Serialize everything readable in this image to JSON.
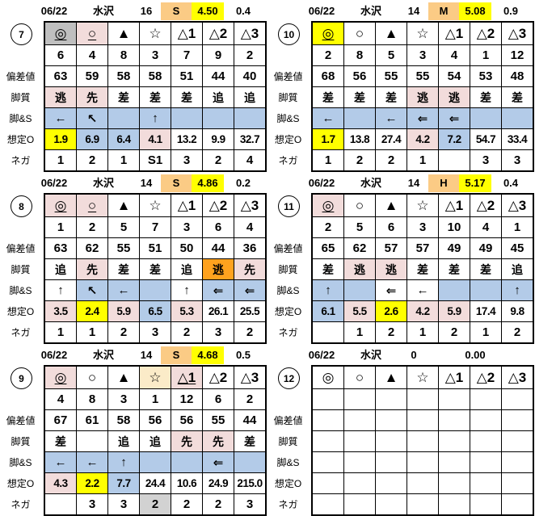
{
  "colors": {
    "yellow": "#FFFF00",
    "tan": "#FBCB85",
    "pink": "#F2DCDB",
    "blue": "#B3CBE8",
    "gray": "#BFBFBF",
    "lightgray": "#D2D2D2",
    "cream": "#FBEBC8",
    "orange": "#FFA21E"
  },
  "row_labels": {
    "dev": "偏差値",
    "style": "脚質",
    "legs": "脚&S",
    "odds": "想定O",
    "neg": "ネガ"
  },
  "blocks": [
    {
      "id": "7",
      "header": {
        "date": "06/22",
        "track": "水沢",
        "num": "16",
        "letter": "S",
        "letter_bg": "tan",
        "value": "4.50",
        "value_bg": "yellow",
        "extra": "0.4"
      },
      "symbols": [
        {
          "t": "◎",
          "bg": "gray",
          "u": true
        },
        {
          "t": "○",
          "bg": "pink",
          "u": true
        },
        {
          "t": "▲"
        },
        {
          "t": "☆"
        },
        {
          "t": "△1"
        },
        {
          "t": "△2"
        },
        {
          "t": "△3"
        }
      ],
      "numbers": [
        "6",
        "4",
        "8",
        "3",
        "7",
        "9",
        "2"
      ],
      "dev": [
        "63",
        "59",
        "58",
        "58",
        "51",
        "44",
        "40"
      ],
      "style": [
        {
          "t": "逃",
          "bg": "pink"
        },
        {
          "t": "先",
          "bg": "pink"
        },
        {
          "t": "差"
        },
        {
          "t": "差"
        },
        {
          "t": "差"
        },
        {
          "t": "追"
        },
        {
          "t": "追"
        }
      ],
      "legs": [
        {
          "t": "←",
          "bg": "blue"
        },
        {
          "t": "↖",
          "bg": "blue"
        },
        {
          "t": "",
          "bg": "blue"
        },
        {
          "t": "↑",
          "bg": "blue"
        },
        {
          "t": "",
          "bg": "blue"
        },
        {
          "t": "",
          "bg": "blue"
        },
        {
          "t": "",
          "bg": "blue"
        }
      ],
      "odds": [
        {
          "t": "1.9",
          "bg": "yellow"
        },
        {
          "t": "6.9",
          "bg": "blue"
        },
        {
          "t": "6.4",
          "bg": "blue"
        },
        {
          "t": "4.1",
          "bg": "pink"
        },
        {
          "t": "13.2"
        },
        {
          "t": "9.9"
        },
        {
          "t": "32.7"
        }
      ],
      "neg": [
        {
          "t": "1"
        },
        {
          "t": "2"
        },
        {
          "t": "1"
        },
        {
          "t": "S1"
        },
        {
          "t": "3"
        },
        {
          "t": "2"
        },
        {
          "t": "4"
        }
      ]
    },
    {
      "id": "8",
      "header": {
        "date": "06/22",
        "track": "水沢",
        "num": "14",
        "letter": "S",
        "letter_bg": "tan",
        "value": "4.86",
        "value_bg": "yellow",
        "extra": "0.2"
      },
      "symbols": [
        {
          "t": "◎",
          "bg": "pink",
          "u": true
        },
        {
          "t": "○",
          "bg": "pink",
          "u": true
        },
        {
          "t": "▲"
        },
        {
          "t": "☆"
        },
        {
          "t": "△1"
        },
        {
          "t": "△2"
        },
        {
          "t": "△3"
        }
      ],
      "numbers": [
        "1",
        "2",
        "5",
        "7",
        "3",
        "6",
        "4"
      ],
      "dev": [
        "63",
        "62",
        "55",
        "51",
        "50",
        "44",
        "36"
      ],
      "style": [
        {
          "t": "追"
        },
        {
          "t": "先",
          "bg": "pink"
        },
        {
          "t": "差"
        },
        {
          "t": "差"
        },
        {
          "t": "追"
        },
        {
          "t": "逃",
          "bg": "orange"
        },
        {
          "t": "先",
          "bg": "pink"
        }
      ],
      "legs": [
        {
          "t": "↑"
        },
        {
          "t": "↖",
          "bg": "blue"
        },
        {
          "t": "←",
          "bg": "blue"
        },
        {
          "t": "",
          "bg": "blue"
        },
        {
          "t": "↑"
        },
        {
          "t": "⇐",
          "bg": "blue"
        },
        {
          "t": "⇐",
          "bg": "blue"
        }
      ],
      "odds": [
        {
          "t": "3.5",
          "bg": "pink"
        },
        {
          "t": "2.4",
          "bg": "yellow"
        },
        {
          "t": "5.9",
          "bg": "pink"
        },
        {
          "t": "6.5",
          "bg": "blue"
        },
        {
          "t": "5.3",
          "bg": "pink"
        },
        {
          "t": "26.1"
        },
        {
          "t": "25.5"
        }
      ],
      "neg": [
        {
          "t": "1"
        },
        {
          "t": "1"
        },
        {
          "t": "2"
        },
        {
          "t": "3"
        },
        {
          "t": "2"
        },
        {
          "t": "3"
        },
        {
          "t": "2"
        }
      ]
    },
    {
      "id": "9",
      "header": {
        "date": "06/22",
        "track": "水沢",
        "num": "14",
        "letter": "S",
        "letter_bg": "tan",
        "value": "4.68",
        "value_bg": "yellow",
        "extra": "0.5"
      },
      "symbols": [
        {
          "t": "◎",
          "bg": "pink",
          "u": true
        },
        {
          "t": "○"
        },
        {
          "t": "▲"
        },
        {
          "t": "☆",
          "bg": "cream"
        },
        {
          "t": "△1",
          "bg": "pink",
          "u": true
        },
        {
          "t": "△2"
        },
        {
          "t": "△3"
        }
      ],
      "numbers": [
        "4",
        "8",
        "3",
        "1",
        "12",
        "6",
        "2"
      ],
      "dev": [
        "67",
        "61",
        "58",
        "56",
        "56",
        "55",
        "44"
      ],
      "style": [
        {
          "t": "差"
        },
        {
          "t": ""
        },
        {
          "t": "追"
        },
        {
          "t": "追"
        },
        {
          "t": "先",
          "bg": "pink"
        },
        {
          "t": "先",
          "bg": "pink"
        },
        {
          "t": "差"
        }
      ],
      "legs": [
        {
          "t": "←",
          "bg": "blue"
        },
        {
          "t": "←",
          "bg": "blue"
        },
        {
          "t": "↑",
          "bg": "blue"
        },
        {
          "t": "",
          "bg": "blue"
        },
        {
          "t": "",
          "bg": "blue"
        },
        {
          "t": "⇐",
          "bg": "blue"
        },
        {
          "t": "",
          "bg": "blue"
        }
      ],
      "odds": [
        {
          "t": "4.3",
          "bg": "pink"
        },
        {
          "t": "2.2",
          "bg": "yellow"
        },
        {
          "t": "7.7",
          "bg": "blue"
        },
        {
          "t": "24.4"
        },
        {
          "t": "10.6"
        },
        {
          "t": "24.9"
        },
        {
          "t": "215.0"
        }
      ],
      "neg": [
        {
          "t": ""
        },
        {
          "t": "3"
        },
        {
          "t": "3"
        },
        {
          "t": "2",
          "bg": "lightgray"
        },
        {
          "t": "2"
        },
        {
          "t": "2"
        },
        {
          "t": "3"
        }
      ]
    },
    {
      "id": "10",
      "header": {
        "date": "06/22",
        "track": "水沢",
        "num": "14",
        "letter": "M",
        "letter_bg": "tan",
        "value": "5.08",
        "value_bg": "yellow",
        "extra": "0.9"
      },
      "symbols": [
        {
          "t": "◎",
          "bg": "yellow",
          "u": true
        },
        {
          "t": "○"
        },
        {
          "t": "▲"
        },
        {
          "t": "☆"
        },
        {
          "t": "△1"
        },
        {
          "t": "△2"
        },
        {
          "t": "△3"
        }
      ],
      "numbers": [
        "2",
        "8",
        "5",
        "3",
        "4",
        "1",
        "12"
      ],
      "dev": [
        "68",
        "56",
        "55",
        "55",
        "54",
        "53",
        "48"
      ],
      "style": [
        {
          "t": "差"
        },
        {
          "t": "差"
        },
        {
          "t": "差"
        },
        {
          "t": "逃",
          "bg": "pink"
        },
        {
          "t": "逃",
          "bg": "pink"
        },
        {
          "t": "差"
        },
        {
          "t": "差"
        }
      ],
      "legs": [
        {
          "t": "←",
          "bg": "blue"
        },
        {
          "t": "",
          "bg": "blue"
        },
        {
          "t": "←",
          "bg": "blue"
        },
        {
          "t": "⇐",
          "bg": "blue"
        },
        {
          "t": "⇐",
          "bg": "blue"
        },
        {
          "t": "",
          "bg": "blue"
        },
        {
          "t": "",
          "bg": "blue"
        }
      ],
      "odds": [
        {
          "t": "1.7",
          "bg": "yellow"
        },
        {
          "t": "13.8"
        },
        {
          "t": "27.4"
        },
        {
          "t": "4.2",
          "bg": "pink"
        },
        {
          "t": "7.2",
          "bg": "blue"
        },
        {
          "t": "54.7"
        },
        {
          "t": "33.4"
        }
      ],
      "neg": [
        {
          "t": "1"
        },
        {
          "t": "2"
        },
        {
          "t": "2"
        },
        {
          "t": "1"
        },
        {
          "t": ""
        },
        {
          "t": "3"
        },
        {
          "t": "3"
        }
      ]
    },
    {
      "id": "11",
      "header": {
        "date": "06/22",
        "track": "水沢",
        "num": "14",
        "letter": "H",
        "letter_bg": "tan",
        "value": "5.17",
        "value_bg": "yellow",
        "extra": "0.4"
      },
      "symbols": [
        {
          "t": "◎",
          "bg": "pink",
          "u": true
        },
        {
          "t": "○"
        },
        {
          "t": "▲"
        },
        {
          "t": "☆"
        },
        {
          "t": "△1"
        },
        {
          "t": "△2"
        },
        {
          "t": "△3"
        }
      ],
      "numbers": [
        "2",
        "5",
        "6",
        "3",
        "10",
        "4",
        "1"
      ],
      "dev": [
        "65",
        "62",
        "57",
        "57",
        "49",
        "49",
        "45"
      ],
      "style": [
        {
          "t": "差"
        },
        {
          "t": "逃",
          "bg": "pink"
        },
        {
          "t": "逃",
          "bg": "pink"
        },
        {
          "t": "差"
        },
        {
          "t": "差"
        },
        {
          "t": "差"
        },
        {
          "t": "追"
        }
      ],
      "legs": [
        {
          "t": "↑",
          "bg": "blue"
        },
        {
          "t": "",
          "bg": "blue"
        },
        {
          "t": "⇐"
        },
        {
          "t": "←"
        },
        {
          "t": "",
          "bg": "blue"
        },
        {
          "t": "",
          "bg": "blue"
        },
        {
          "t": "↑",
          "bg": "blue"
        }
      ],
      "odds": [
        {
          "t": "6.1",
          "bg": "blue"
        },
        {
          "t": "5.5",
          "bg": "pink"
        },
        {
          "t": "2.6",
          "bg": "yellow"
        },
        {
          "t": "4.2",
          "bg": "pink"
        },
        {
          "t": "5.9",
          "bg": "pink"
        },
        {
          "t": "17.4"
        },
        {
          "t": "9.8"
        }
      ],
      "neg": [
        {
          "t": ""
        },
        {
          "t": "1"
        },
        {
          "t": "2"
        },
        {
          "t": "1"
        },
        {
          "t": "2"
        },
        {
          "t": "1"
        },
        {
          "t": "2"
        }
      ]
    },
    {
      "id": "12",
      "header": {
        "date": "06/22",
        "track": "水沢",
        "num": "0",
        "letter": "",
        "value": "0.00",
        "extra": ""
      },
      "symbols": [
        {
          "t": "◎"
        },
        {
          "t": "○"
        },
        {
          "t": "▲"
        },
        {
          "t": "☆"
        },
        {
          "t": "△1"
        },
        {
          "t": "△2"
        },
        {
          "t": "△3"
        }
      ],
      "numbers": [
        "",
        "",
        "",
        "",
        "",
        "",
        ""
      ],
      "dev": [
        "",
        "",
        "",
        "",
        "",
        "",
        ""
      ],
      "style": [
        {
          "t": ""
        },
        {
          "t": ""
        },
        {
          "t": ""
        },
        {
          "t": ""
        },
        {
          "t": ""
        },
        {
          "t": ""
        },
        {
          "t": ""
        }
      ],
      "legs": [
        {
          "t": ""
        },
        {
          "t": ""
        },
        {
          "t": ""
        },
        {
          "t": ""
        },
        {
          "t": ""
        },
        {
          "t": ""
        },
        {
          "t": ""
        }
      ],
      "odds": [
        {
          "t": ""
        },
        {
          "t": ""
        },
        {
          "t": ""
        },
        {
          "t": ""
        },
        {
          "t": ""
        },
        {
          "t": ""
        },
        {
          "t": ""
        }
      ],
      "neg": [
        {
          "t": ""
        },
        {
          "t": ""
        },
        {
          "t": ""
        },
        {
          "t": ""
        },
        {
          "t": ""
        },
        {
          "t": ""
        },
        {
          "t": ""
        }
      ]
    }
  ]
}
